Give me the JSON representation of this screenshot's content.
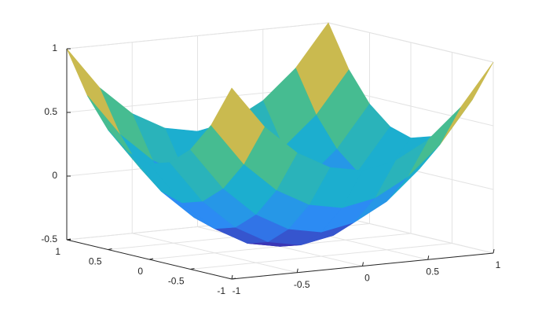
{
  "chart_data": {
    "type": "surface",
    "x": [
      -1,
      -0.75,
      -0.5,
      -0.25,
      0,
      0.25,
      0.5,
      0.75,
      1
    ],
    "y": [
      -1,
      -0.75,
      -0.5,
      -0.25,
      0,
      0.25,
      0.5,
      0.75,
      1
    ],
    "z": [
      [
        1,
        0.67,
        0.44,
        0.3,
        0.25,
        0.3,
        0.44,
        0.67,
        1
      ],
      [
        0.67,
        0.34,
        0.11,
        -0.03,
        -0.08,
        -0.03,
        0.11,
        0.34,
        0.67
      ],
      [
        0.44,
        0.11,
        -0.12,
        -0.26,
        -0.31,
        -0.26,
        -0.12,
        0.11,
        0.44
      ],
      [
        0.3,
        -0.03,
        -0.26,
        -0.4,
        -0.45,
        -0.4,
        -0.26,
        -0.03,
        0.3
      ],
      [
        0.25,
        -0.08,
        -0.31,
        -0.45,
        -0.5,
        -0.45,
        -0.31,
        -0.08,
        0.25
      ],
      [
        0.3,
        -0.03,
        -0.26,
        -0.4,
        -0.45,
        -0.4,
        -0.26,
        -0.03,
        0.3
      ],
      [
        0.44,
        0.11,
        -0.12,
        -0.26,
        -0.31,
        -0.26,
        -0.12,
        0.11,
        0.44
      ],
      [
        0.67,
        0.34,
        0.11,
        -0.03,
        -0.08,
        -0.03,
        0.11,
        0.34,
        0.67
      ],
      [
        1,
        0.67,
        0.44,
        0.3,
        0.25,
        0.3,
        0.44,
        0.67,
        1
      ]
    ],
    "xlim": [
      -1,
      1
    ],
    "ylim": [
      -1,
      1
    ],
    "zlim": [
      -0.5,
      1
    ],
    "xticks": [
      -1,
      -0.5,
      0,
      0.5,
      1
    ],
    "yticks": [
      -1,
      -0.5,
      0,
      0.5,
      1
    ],
    "zticks": [
      -0.5,
      0,
      0.5,
      1
    ],
    "colormap": "parula",
    "grid": true
  }
}
